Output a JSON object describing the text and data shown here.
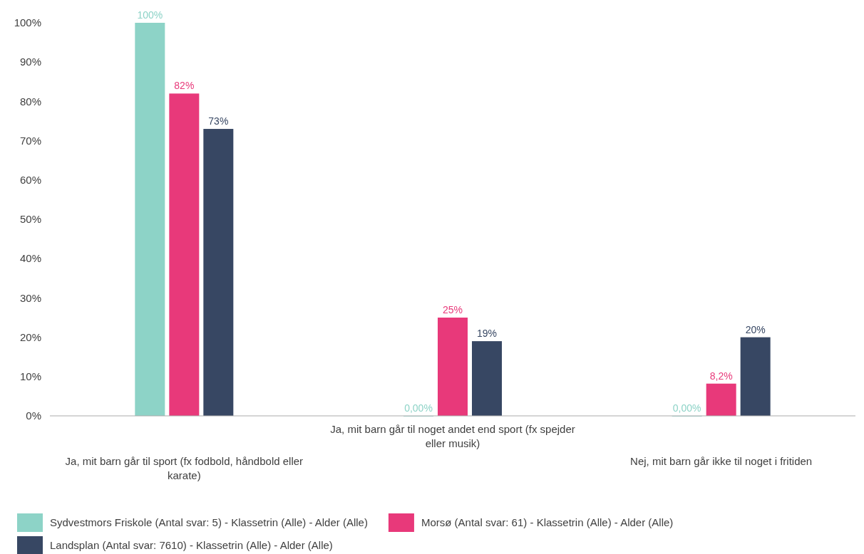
{
  "chart_data": {
    "type": "bar",
    "categories": [
      "Ja, mit barn går til sport (fx fodbold, håndbold eller karate)",
      "Ja, mit barn går til noget andet end sport (fx spejder eller musik)",
      "Nej, mit barn går ikke til noget i fritiden"
    ],
    "series": [
      {
        "name": "Sydvestmors Friskole (Antal svar: 5)  - Klassetrin (Alle) - Alder (Alle)",
        "color": "#8dd3c7",
        "values": [
          100,
          0,
          0
        ],
        "value_labels": [
          "100%",
          "0,00%",
          "0,00%"
        ]
      },
      {
        "name": "Morsø (Antal svar: 61)  - Klassetrin (Alle) - Alder (Alle)",
        "color": "#e8397a",
        "values": [
          82,
          25,
          8.2
        ],
        "value_labels": [
          "82%",
          "25%",
          "8,2%"
        ]
      },
      {
        "name": "Landsplan (Antal svar: 7610)  - Klassetrin (Alle) - Alder (Alle)",
        "color": "#374763",
        "values": [
          73,
          19,
          20
        ],
        "value_labels": [
          "73%",
          "19%",
          "20%"
        ]
      }
    ],
    "ylim": [
      0,
      100
    ],
    "yticks": [
      {
        "value": 0,
        "label": "0%"
      },
      {
        "value": 10,
        "label": "10%"
      },
      {
        "value": 20,
        "label": "20%"
      },
      {
        "value": 30,
        "label": "30%"
      },
      {
        "value": 40,
        "label": "40%"
      },
      {
        "value": 50,
        "label": "50%"
      },
      {
        "value": 60,
        "label": "60%"
      },
      {
        "value": 70,
        "label": "70%"
      },
      {
        "value": 80,
        "label": "80%"
      },
      {
        "value": 90,
        "label": "90%"
      },
      {
        "value": 100,
        "label": "100%"
      }
    ],
    "grid": false,
    "legend": "bottom"
  }
}
